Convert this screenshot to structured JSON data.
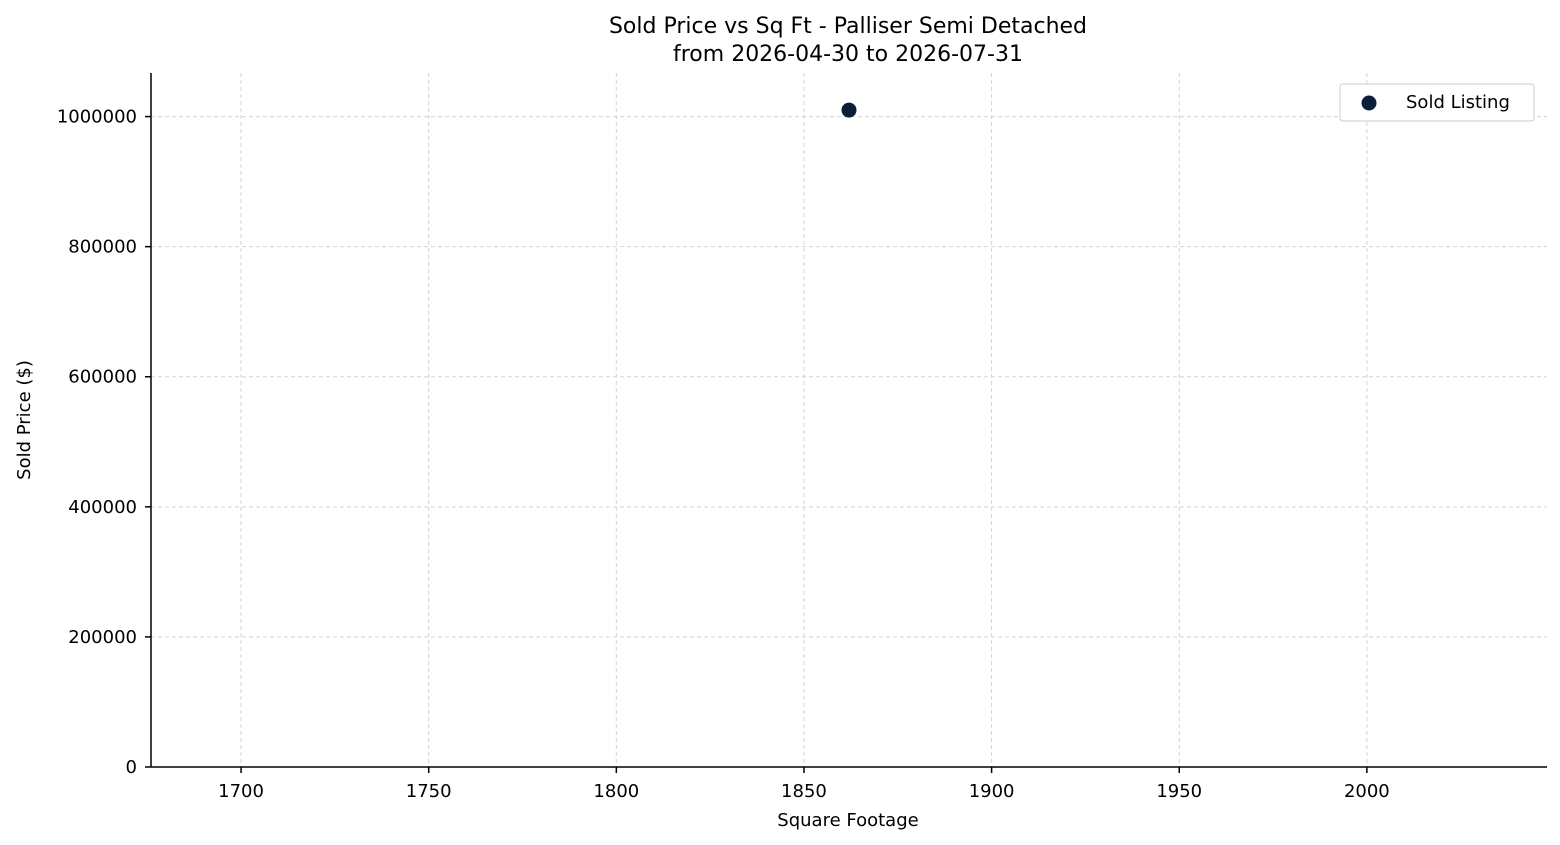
{
  "chart_data": {
    "type": "scatter",
    "title": "Sold Price vs Sq Ft - Palliser Semi Detached",
    "subtitle": "from 2026-04-30 to 2026-07-31",
    "xlabel": "Square Footage",
    "ylabel": "Sold Price ($)",
    "xlim": [
      1676,
      2048
    ],
    "ylim": [
      0,
      1067000
    ],
    "xticks": [
      1700,
      1750,
      1800,
      1850,
      1900,
      1950,
      2000
    ],
    "yticks": [
      0,
      200000,
      400000,
      600000,
      800000,
      1000000
    ],
    "grid": true,
    "legend_position": "top-right",
    "series": [
      {
        "name": "Sold Listing",
        "color": "#0b1f3a",
        "points": [
          {
            "x": 1862,
            "y": 1010000
          }
        ]
      }
    ]
  }
}
